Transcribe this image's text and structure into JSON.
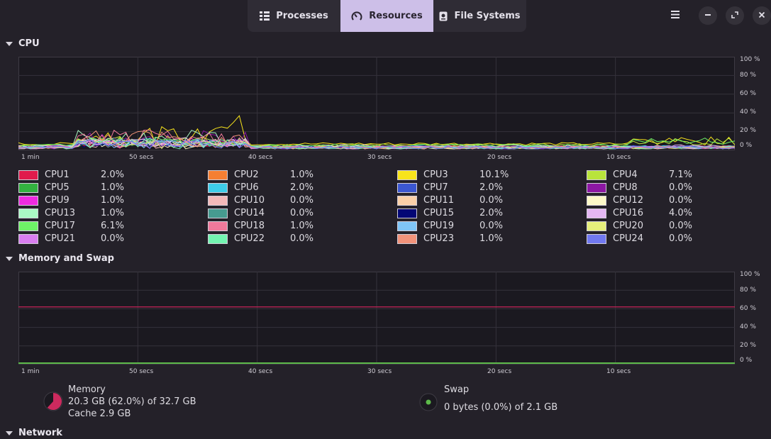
{
  "tabs": [
    {
      "label": "Processes",
      "icon": "list-icon",
      "active": false
    },
    {
      "label": "Resources",
      "icon": "gauge-icon",
      "active": true
    },
    {
      "label": "File Systems",
      "icon": "disk-icon",
      "active": false
    }
  ],
  "colors": {
    "accent": "#cdbfe8",
    "background": "#242129",
    "graph_bg": "#1b1920"
  },
  "sections": {
    "cpu": "CPU",
    "memory": "Memory and Swap",
    "network": "Network"
  },
  "axis": {
    "y_ticks": [
      "100 %",
      "80 %",
      "60 %",
      "40 %",
      "20 %",
      "0 %"
    ],
    "x_ticks": [
      "1 min",
      "50 secs",
      "40 secs",
      "30 secs",
      "20 secs",
      "10 secs"
    ]
  },
  "cpus": [
    {
      "name": "CPU1",
      "value": "2.0%",
      "color": "#e01b4c"
    },
    {
      "name": "CPU2",
      "value": "1.0%",
      "color": "#f57f33"
    },
    {
      "name": "CPU3",
      "value": "10.1%",
      "color": "#f8e41c"
    },
    {
      "name": "CPU4",
      "value": "7.1%",
      "color": "#b9e43c"
    },
    {
      "name": "CPU5",
      "value": "1.0%",
      "color": "#33b240"
    },
    {
      "name": "CPU6",
      "value": "2.0%",
      "color": "#3ecde9"
    },
    {
      "name": "CPU7",
      "value": "2.0%",
      "color": "#3b57d1"
    },
    {
      "name": "CPU8",
      "value": "0.0%",
      "color": "#8c17a3"
    },
    {
      "name": "CPU9",
      "value": "1.0%",
      "color": "#ef2ae0"
    },
    {
      "name": "CPU10",
      "value": "0.0%",
      "color": "#f3b9b9"
    },
    {
      "name": "CPU11",
      "value": "0.0%",
      "color": "#fad0a8"
    },
    {
      "name": "CPU12",
      "value": "0.0%",
      "color": "#fcf9c8"
    },
    {
      "name": "CPU13",
      "value": "1.0%",
      "color": "#aaf9c4"
    },
    {
      "name": "CPU14",
      "value": "0.0%",
      "color": "#469b90"
    },
    {
      "name": "CPU15",
      "value": "2.0%",
      "color": "#030775"
    },
    {
      "name": "CPU16",
      "value": "4.0%",
      "color": "#e4b7f3"
    },
    {
      "name": "CPU17",
      "value": "6.1%",
      "color": "#6ef267"
    },
    {
      "name": "CPU18",
      "value": "1.0%",
      "color": "#f0799b"
    },
    {
      "name": "CPU19",
      "value": "0.0%",
      "color": "#7fc5f7"
    },
    {
      "name": "CPU20",
      "value": "0.0%",
      "color": "#e6ef7b"
    },
    {
      "name": "CPU21",
      "value": "0.0%",
      "color": "#d97ef0"
    },
    {
      "name": "CPU22",
      "value": "0.0%",
      "color": "#73f5b1"
    },
    {
      "name": "CPU23",
      "value": "1.0%",
      "color": "#f2937a"
    },
    {
      "name": "CPU24",
      "value": "0.0%",
      "color": "#7179f0"
    }
  ],
  "memory": {
    "label": "Memory",
    "usage": "20.3 GB (62.0%) of 32.7 GB",
    "cache": "Cache 2.9 GB",
    "fraction": 0.62,
    "color": "#cc2a5e"
  },
  "swap": {
    "label": "Swap",
    "usage": "0 bytes (0.0%) of 2.1 GB",
    "fraction": 0.0,
    "color": "#5dba4a"
  }
}
